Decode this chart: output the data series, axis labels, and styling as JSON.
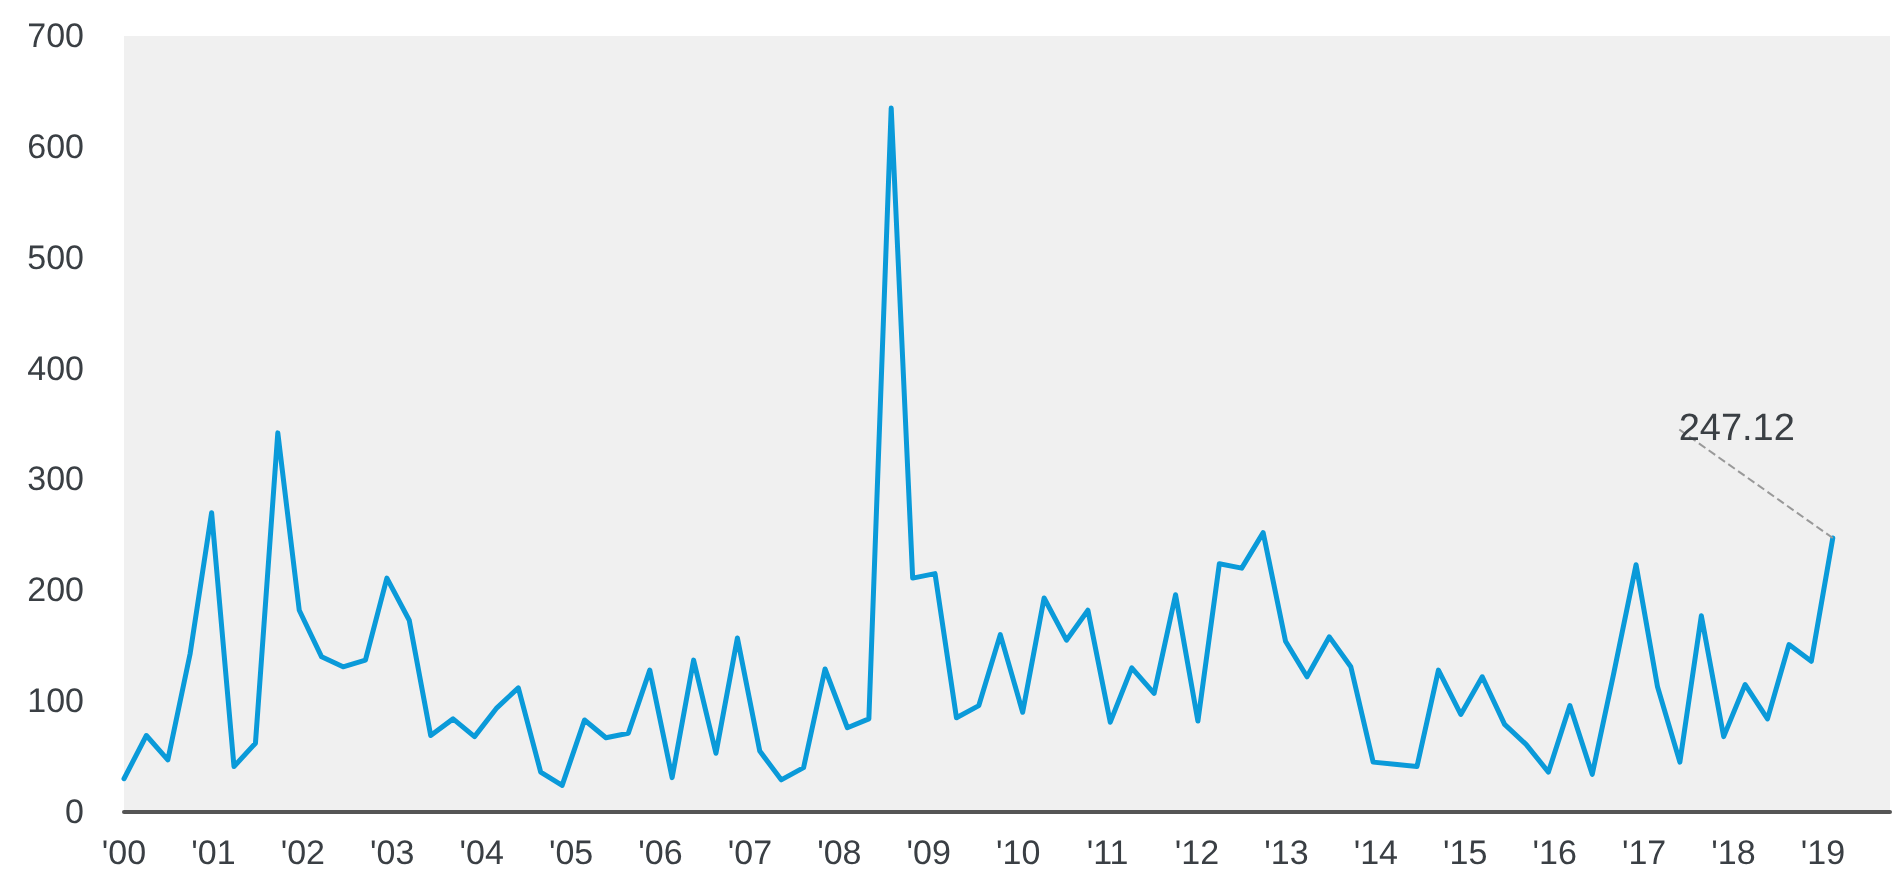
{
  "chart_data": {
    "type": "line",
    "x": [
      2000,
      2000.25,
      2000.49,
      2000.74,
      2000.98,
      2001.23,
      2001.47,
      2001.72,
      2001.96,
      2002.21,
      2002.45,
      2002.7,
      2002.94,
      2003.19,
      2003.43,
      2003.68,
      2003.92,
      2004.17,
      2004.41,
      2004.66,
      2004.9,
      2005.15,
      2005.39,
      2005.64,
      2005.88,
      2006.13,
      2006.37,
      2006.62,
      2006.86,
      2007.11,
      2007.35,
      2007.6,
      2007.84,
      2008.09,
      2008.33,
      2008.58,
      2008.82,
      2009.07,
      2009.31,
      2009.56,
      2009.8,
      2010.05,
      2010.29,
      2010.54,
      2010.78,
      2011.03,
      2011.27,
      2011.52,
      2011.76,
      2012.01,
      2012.25,
      2012.5,
      2012.74,
      2012.99,
      2013.23,
      2013.48,
      2013.72,
      2013.97,
      2014.21,
      2014.46,
      2014.7,
      2014.95,
      2015.19,
      2015.44,
      2015.68,
      2015.93,
      2016.17,
      2016.42,
      2016.66,
      2016.91,
      2017.15,
      2017.4,
      2017.64,
      2017.89,
      2018.13,
      2018.38,
      2018.62,
      2018.87,
      2019.11
    ],
    "series": [
      {
        "color": "#0a9ad9",
        "values": [
          30,
          69,
          47,
          143,
          270,
          41,
          62,
          342,
          182,
          140,
          131,
          137,
          211,
          173,
          69,
          84,
          68,
          94,
          112,
          36,
          24,
          83,
          67,
          71,
          128,
          31,
          137,
          53,
          157,
          55,
          29,
          40,
          129,
          76,
          84,
          635,
          211,
          215,
          85,
          96,
          160,
          90,
          193,
          155,
          182,
          81,
          130,
          107,
          196,
          82,
          224,
          220,
          252,
          154,
          122,
          158,
          131,
          45,
          43,
          41,
          128,
          88,
          122,
          79,
          61,
          36,
          96,
          34,
          125,
          223,
          113,
          45,
          177,
          68,
          115,
          84,
          151,
          136,
          247.12
        ]
      }
    ],
    "xlim": [
      2000,
      2019.75
    ],
    "xticks": [
      {
        "value": 2000,
        "label": "'00"
      },
      {
        "value": 2001,
        "label": "'01"
      },
      {
        "value": 2002,
        "label": "'02"
      },
      {
        "value": 2003,
        "label": "'03"
      },
      {
        "value": 2004,
        "label": "'04"
      },
      {
        "value": 2005,
        "label": "'05"
      },
      {
        "value": 2006,
        "label": "'06"
      },
      {
        "value": 2007,
        "label": "'07"
      },
      {
        "value": 2008,
        "label": "'08"
      },
      {
        "value": 2009,
        "label": "'09"
      },
      {
        "value": 2010,
        "label": "'10"
      },
      {
        "value": 2011,
        "label": "'11"
      },
      {
        "value": 2012,
        "label": "'12"
      },
      {
        "value": 2013,
        "label": "'13"
      },
      {
        "value": 2014,
        "label": "'14"
      },
      {
        "value": 2015,
        "label": "'15"
      },
      {
        "value": 2016,
        "label": "'16"
      },
      {
        "value": 2017,
        "label": "'17"
      },
      {
        "value": 2018,
        "label": "'18"
      },
      {
        "value": 2019,
        "label": "'19"
      }
    ],
    "ylim": [
      0,
      700
    ],
    "yticks": [
      0,
      100,
      200,
      300,
      400,
      500,
      600,
      700
    ],
    "annotations": [
      {
        "text": "247.12",
        "x": 2019.11,
        "y": 247.12
      }
    ],
    "grid": false,
    "marker": "none",
    "line_style": "solid"
  }
}
